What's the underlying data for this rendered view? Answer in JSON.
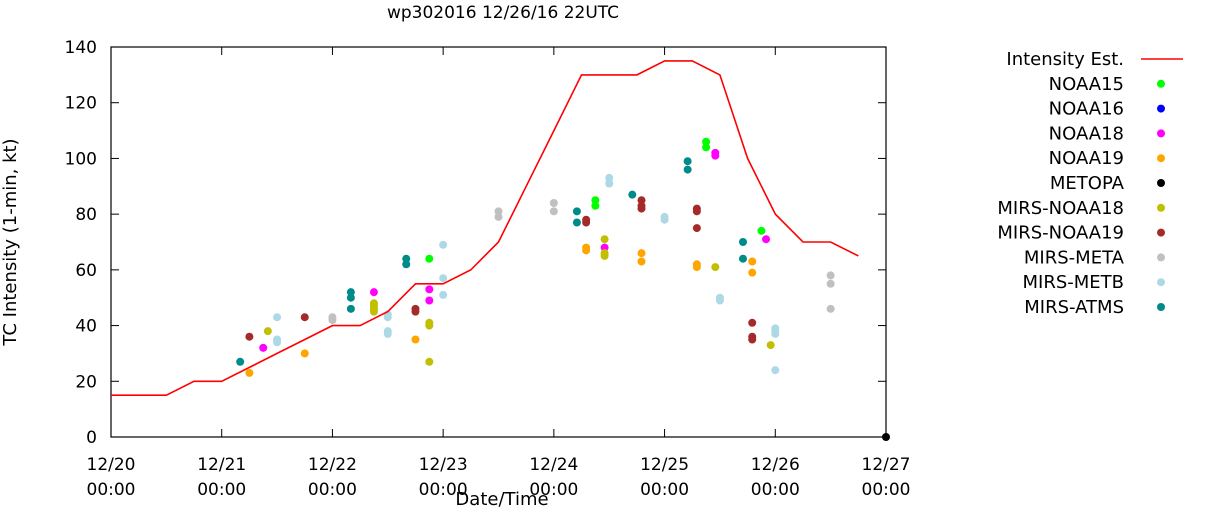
{
  "chart_data": {
    "type": "scatter",
    "title": "wp302016 12/26/16 22UTC",
    "xlabel": "Date/Time",
    "ylabel": "TC Intensity (1-min, kt)",
    "xlim": [
      "2016-12-20 00:00",
      "2016-12-27 00:00"
    ],
    "ylim": [
      0,
      140
    ],
    "yticks": [
      "0",
      "20",
      "40",
      "60",
      "80",
      "100",
      "120",
      "140"
    ],
    "xticks": [
      {
        "date": "12/20",
        "time": "00:00"
      },
      {
        "date": "12/21",
        "time": "00:00"
      },
      {
        "date": "12/22",
        "time": "00:00"
      },
      {
        "date": "12/23",
        "time": "00:00"
      },
      {
        "date": "12/24",
        "time": "00:00"
      },
      {
        "date": "12/25",
        "time": "00:00"
      },
      {
        "date": "12/26",
        "time": "00:00"
      },
      {
        "date": "12/27",
        "time": "00:00"
      }
    ],
    "grid": false,
    "legend_position": "right",
    "line_series": {
      "name": "Intensity Est.",
      "color": "#ff0000",
      "points": [
        [
          "2016-12-20 00:00",
          15
        ],
        [
          "2016-12-20 12:00",
          15
        ],
        [
          "2016-12-20 18:00",
          20
        ],
        [
          "2016-12-21 00:00",
          20
        ],
        [
          "2016-12-21 06:00",
          25
        ],
        [
          "2016-12-21 12:00",
          30
        ],
        [
          "2016-12-21 18:00",
          35
        ],
        [
          "2016-12-22 00:00",
          40
        ],
        [
          "2016-12-22 06:00",
          40
        ],
        [
          "2016-12-22 12:00",
          45
        ],
        [
          "2016-12-22 18:00",
          55
        ],
        [
          "2016-12-23 00:00",
          55
        ],
        [
          "2016-12-23 06:00",
          60
        ],
        [
          "2016-12-23 12:00",
          70
        ],
        [
          "2016-12-23 18:00",
          90
        ],
        [
          "2016-12-24 00:00",
          110
        ],
        [
          "2016-12-24 06:00",
          130
        ],
        [
          "2016-12-24 12:00",
          130
        ],
        [
          "2016-12-24 18:00",
          130
        ],
        [
          "2016-12-25 00:00",
          135
        ],
        [
          "2016-12-25 06:00",
          135
        ],
        [
          "2016-12-25 12:00",
          130
        ],
        [
          "2016-12-25 18:00",
          100
        ],
        [
          "2016-12-26 00:00",
          80
        ],
        [
          "2016-12-26 06:00",
          70
        ],
        [
          "2016-12-26 12:00",
          70
        ],
        [
          "2016-12-26 18:00",
          65
        ]
      ]
    },
    "series": [
      {
        "name": "NOAA15",
        "color": "#00ff00",
        "points": [
          [
            "2016-12-22 21:00",
            64
          ],
          [
            "2016-12-24 09:00",
            85
          ],
          [
            "2016-12-24 09:00",
            83
          ],
          [
            "2016-12-25 09:00",
            106
          ],
          [
            "2016-12-25 09:00",
            104
          ],
          [
            "2016-12-25 21:00",
            74
          ]
        ]
      },
      {
        "name": "NOAA16",
        "color": "#0000ff",
        "points": []
      },
      {
        "name": "NOAA18",
        "color": "#ff00ff",
        "points": [
          [
            "2016-12-21 09:00",
            32
          ],
          [
            "2016-12-22 09:00",
            52
          ],
          [
            "2016-12-22 21:00",
            53
          ],
          [
            "2016-12-22 21:00",
            49
          ],
          [
            "2016-12-24 11:00",
            68
          ],
          [
            "2016-12-25 11:00",
            102
          ],
          [
            "2016-12-25 11:00",
            101
          ],
          [
            "2016-12-25 22:00",
            71
          ]
        ]
      },
      {
        "name": "NOAA19",
        "color": "#ffa500",
        "points": [
          [
            "2016-12-21 06:00",
            23
          ],
          [
            "2016-12-21 18:00",
            30
          ],
          [
            "2016-12-22 18:00",
            35
          ],
          [
            "2016-12-24 07:00",
            68
          ],
          [
            "2016-12-24 07:00",
            67
          ],
          [
            "2016-12-24 19:00",
            66
          ],
          [
            "2016-12-24 19:00",
            63
          ],
          [
            "2016-12-25 07:00",
            62
          ],
          [
            "2016-12-25 07:00",
            61
          ],
          [
            "2016-12-25 19:00",
            63
          ],
          [
            "2016-12-25 19:00",
            59
          ]
        ]
      },
      {
        "name": "METOPA",
        "color": "#000000",
        "points": [
          [
            "2016-12-27 00:00",
            0
          ]
        ]
      },
      {
        "name": "MIRS-NOAA18",
        "color": "#c0c000",
        "points": [
          [
            "2016-12-21 10:00",
            38
          ],
          [
            "2016-12-22 09:00",
            48
          ],
          [
            "2016-12-22 09:00",
            47
          ],
          [
            "2016-12-22 09:00",
            46
          ],
          [
            "2016-12-22 09:00",
            45
          ],
          [
            "2016-12-22 21:00",
            41
          ],
          [
            "2016-12-22 21:00",
            40
          ],
          [
            "2016-12-22 21:00",
            27
          ],
          [
            "2016-12-24 11:00",
            71
          ],
          [
            "2016-12-24 11:00",
            66
          ],
          [
            "2016-12-24 11:00",
            65
          ],
          [
            "2016-12-25 11:00",
            61
          ],
          [
            "2016-12-25 23:00",
            33
          ]
        ]
      },
      {
        "name": "MIRS-NOAA19",
        "color": "#a52a2a",
        "points": [
          [
            "2016-12-21 06:00",
            36
          ],
          [
            "2016-12-21 18:00",
            43
          ],
          [
            "2016-12-22 18:00",
            46
          ],
          [
            "2016-12-22 18:00",
            45
          ],
          [
            "2016-12-24 07:00",
            78
          ],
          [
            "2016-12-24 07:00",
            77
          ],
          [
            "2016-12-24 19:00",
            85
          ],
          [
            "2016-12-24 19:00",
            83
          ],
          [
            "2016-12-24 19:00",
            82
          ],
          [
            "2016-12-25 07:00",
            82
          ],
          [
            "2016-12-25 07:00",
            81
          ],
          [
            "2016-12-25 07:00",
            75
          ],
          [
            "2016-12-25 19:00",
            41
          ],
          [
            "2016-12-25 19:00",
            36
          ],
          [
            "2016-12-25 19:00",
            35
          ]
        ]
      },
      {
        "name": "MIRS-META",
        "color": "#c0c0c0",
        "points": [
          [
            "2016-12-22 00:00",
            43
          ],
          [
            "2016-12-22 00:00",
            42
          ],
          [
            "2016-12-23 12:00",
            81
          ],
          [
            "2016-12-23 12:00",
            79
          ],
          [
            "2016-12-24 00:00",
            84
          ],
          [
            "2016-12-24 00:00",
            81
          ],
          [
            "2016-12-26 12:00",
            58
          ],
          [
            "2016-12-26 12:00",
            55
          ],
          [
            "2016-12-26 12:00",
            46
          ]
        ]
      },
      {
        "name": "MIRS-METB",
        "color": "#add8e6",
        "points": [
          [
            "2016-12-21 12:00",
            43
          ],
          [
            "2016-12-21 12:00",
            35
          ],
          [
            "2016-12-21 12:00",
            34
          ],
          [
            "2016-12-22 12:00",
            44
          ],
          [
            "2016-12-22 12:00",
            43
          ],
          [
            "2016-12-22 12:00",
            38
          ],
          [
            "2016-12-22 12:00",
            37
          ],
          [
            "2016-12-23 00:00",
            69
          ],
          [
            "2016-12-23 00:00",
            57
          ],
          [
            "2016-12-23 00:00",
            51
          ],
          [
            "2016-12-24 12:00",
            93
          ],
          [
            "2016-12-24 12:00",
            91
          ],
          [
            "2016-12-25 00:00",
            79
          ],
          [
            "2016-12-25 00:00",
            78
          ],
          [
            "2016-12-25 12:00",
            50
          ],
          [
            "2016-12-25 12:00",
            49
          ],
          [
            "2016-12-26 00:00",
            39
          ],
          [
            "2016-12-26 00:00",
            38
          ],
          [
            "2016-12-26 00:00",
            37
          ],
          [
            "2016-12-26 00:00",
            24
          ]
        ]
      },
      {
        "name": "MIRS-ATMS",
        "color": "#008b8b",
        "points": [
          [
            "2016-12-21 04:00",
            27
          ],
          [
            "2016-12-22 04:00",
            52
          ],
          [
            "2016-12-22 04:00",
            50
          ],
          [
            "2016-12-22 04:00",
            46
          ],
          [
            "2016-12-22 16:00",
            64
          ],
          [
            "2016-12-22 16:00",
            62
          ],
          [
            "2016-12-24 05:00",
            81
          ],
          [
            "2016-12-24 05:00",
            77
          ],
          [
            "2016-12-24 17:00",
            87
          ],
          [
            "2016-12-25 05:00",
            99
          ],
          [
            "2016-12-25 05:00",
            96
          ],
          [
            "2016-12-25 17:00",
            70
          ],
          [
            "2016-12-25 17:00",
            64
          ]
        ]
      }
    ]
  }
}
